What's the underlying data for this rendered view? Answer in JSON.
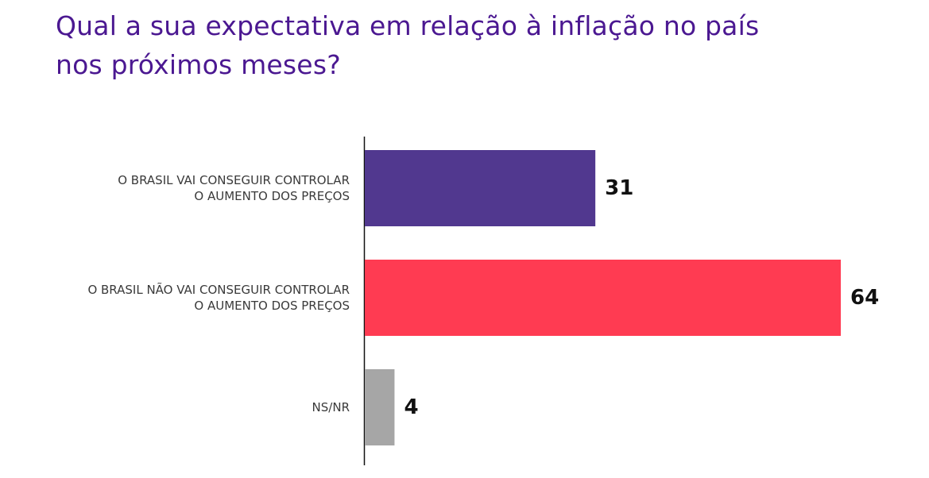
{
  "title_lines": [
    "Qual a sua expectativa em relação à inflação no país",
    "nos próximos meses?"
  ],
  "chart_data": {
    "type": "bar",
    "orientation": "horizontal",
    "title": "Qual a sua expectativa em relação à inflação no país nos próximos meses?",
    "categories": [
      [
        "O BRASIL VAI CONSEGUIR CONTROLAR",
        "O AUMENTO DOS PREÇOS"
      ],
      [
        "O BRASIL NÃO VAI CONSEGUIR CONTROLAR",
        "O AUMENTO DOS PREÇOS"
      ],
      [
        "NS/NR"
      ]
    ],
    "values": [
      31,
      64,
      4
    ],
    "colors": [
      "#51388f",
      "#ff3b52",
      "#a6a6a6"
    ],
    "data_labels": [
      "31",
      "64",
      "4"
    ],
    "xlim": [
      0,
      64
    ],
    "grid": false,
    "legend": "none"
  }
}
